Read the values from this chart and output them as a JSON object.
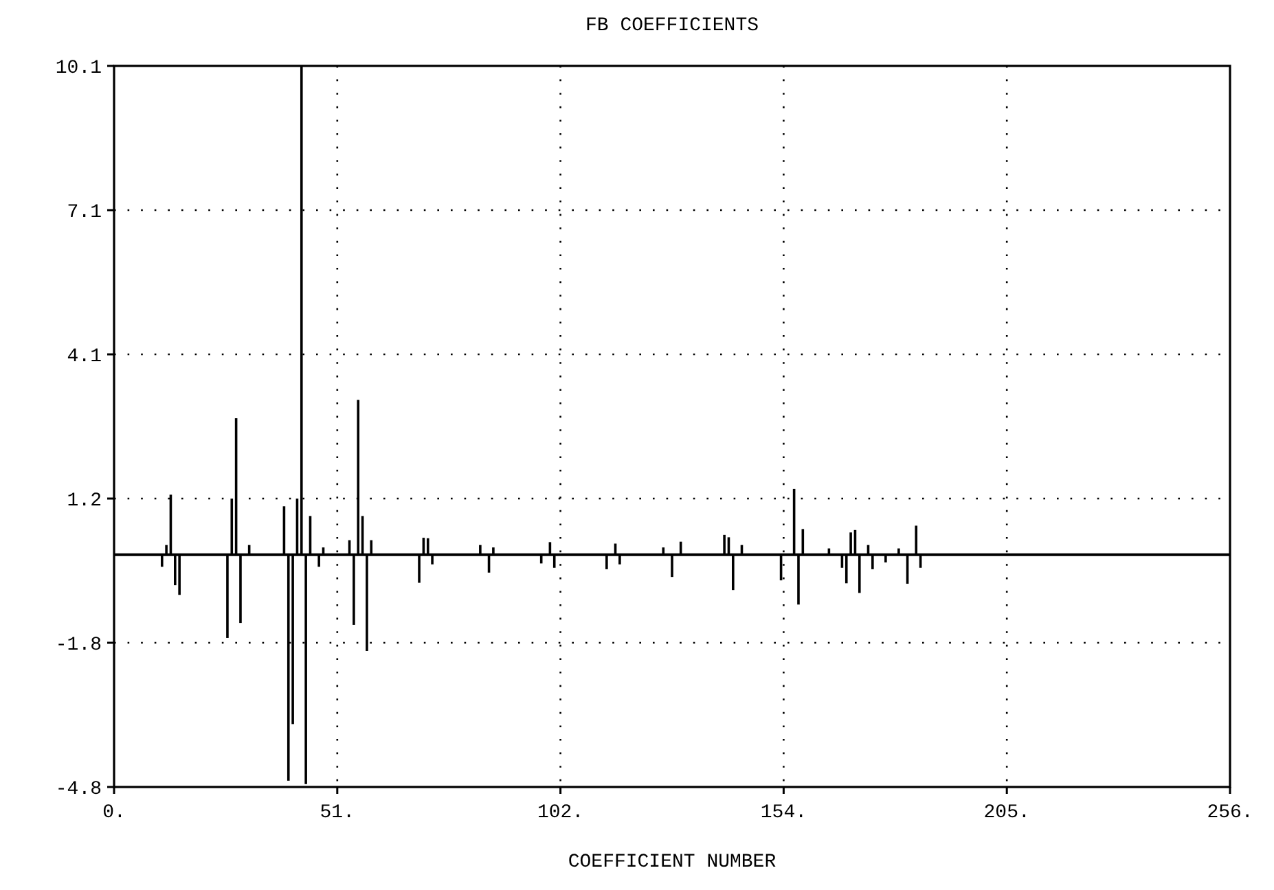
{
  "chart_data": {
    "type": "bar",
    "title": "FB COEFFICIENTS",
    "xlabel": "COEFFICIENT NUMBER",
    "x": [
      11,
      12,
      13,
      14,
      15,
      26,
      27,
      28,
      29,
      31,
      39,
      40,
      41,
      42,
      43,
      44,
      45,
      47,
      48,
      54,
      55,
      56,
      57,
      58,
      59,
      70,
      71,
      72,
      73,
      84,
      86,
      87,
      98,
      100,
      101,
      113,
      115,
      116,
      126,
      128,
      130,
      140,
      141,
      142,
      144,
      153,
      156,
      157,
      158,
      164,
      167,
      168,
      169,
      170,
      171,
      173,
      174,
      177,
      180,
      182,
      184,
      185
    ],
    "series": [
      {
        "color": "#000000",
        "values": [
          -0.25,
          0.2,
          1.24,
          -0.63,
          -0.83,
          -1.72,
          1.16,
          2.82,
          -1.41,
          0.2,
          1.0,
          -4.67,
          -3.5,
          1.16,
          10.1,
          -4.74,
          0.8,
          -0.25,
          0.15,
          0.3,
          -1.45,
          3.2,
          0.8,
          -1.99,
          0.3,
          -0.58,
          0.35,
          0.34,
          -0.2,
          0.2,
          -0.37,
          0.15,
          -0.18,
          0.26,
          -0.27,
          -0.3,
          0.23,
          -0.2,
          0.15,
          -0.46,
          0.27,
          0.41,
          0.36,
          -0.73,
          0.2,
          -0.53,
          1.36,
          -1.03,
          0.53,
          0.13,
          -0.27,
          -0.59,
          0.46,
          0.51,
          -0.79,
          0.2,
          -0.3,
          -0.16,
          0.13,
          -0.6,
          0.6,
          -0.27
        ]
      }
    ],
    "xlim": [
      0,
      256
    ],
    "xticks": [
      {
        "value": 0,
        "label": "0."
      },
      {
        "value": 51.2,
        "label": "51."
      },
      {
        "value": 102.4,
        "label": "102."
      },
      {
        "value": 153.6,
        "label": "154."
      },
      {
        "value": 204.8,
        "label": "205."
      },
      {
        "value": 256,
        "label": "256."
      }
    ],
    "ylim": [
      -4.8,
      10.1
    ],
    "yticks": [
      {
        "value": -4.8,
        "label": "-4.8"
      },
      {
        "value": -1.82,
        "label": "-1.8"
      },
      {
        "value": 1.16,
        "label": "1.2"
      },
      {
        "value": 4.14,
        "label": "4.1"
      },
      {
        "value": 7.12,
        "label": "7.1"
      },
      {
        "value": 10.1,
        "label": "10.1"
      }
    ],
    "ref_lines": [
      {
        "axis": "y",
        "value": 0,
        "color": "#000000"
      }
    ],
    "grid": true
  }
}
